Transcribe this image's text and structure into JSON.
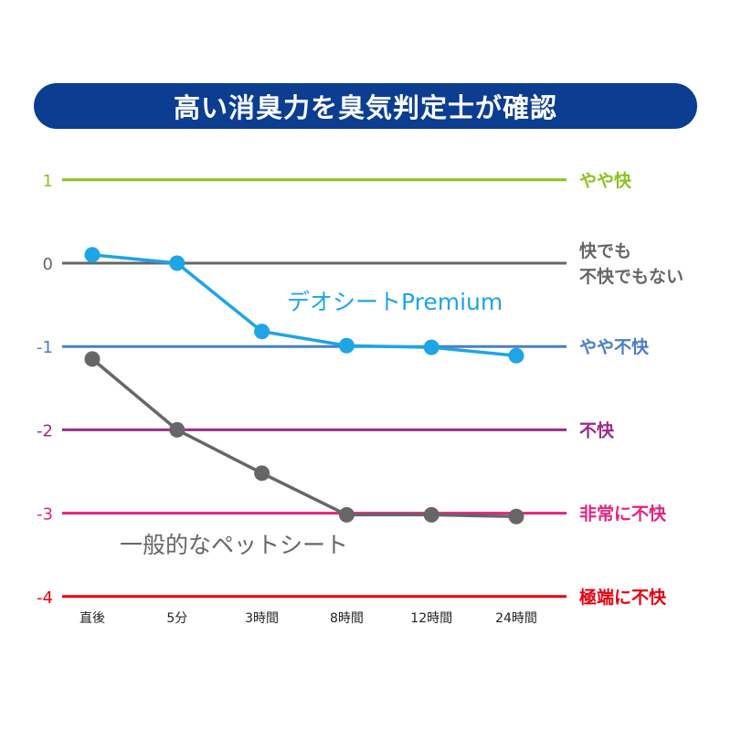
{
  "title": "高い消臭力を臭気判定士が確認",
  "chart_data": {
    "type": "line",
    "categories": [
      "直後",
      "5分",
      "3時間",
      "8時間",
      "12時間",
      "24時間"
    ],
    "ylim": [
      -4,
      1
    ],
    "y_ticks": [
      1,
      0,
      -1,
      -2,
      -3,
      -4
    ],
    "levels": [
      {
        "value": 1,
        "tick_label": "1",
        "label": [
          "やや快"
        ],
        "color": "#8dc21f"
      },
      {
        "value": 0,
        "tick_label": "0",
        "label": [
          "快でも",
          "不快でもない"
        ],
        "color": "#666666"
      },
      {
        "value": -1,
        "tick_label": "-1",
        "label": [
          "やや不快"
        ],
        "color": "#4a7fc1"
      },
      {
        "value": -2,
        "tick_label": "-2",
        "label": [
          "不快"
        ],
        "color": "#9b2a8a"
      },
      {
        "value": -3,
        "tick_label": "-3",
        "label": [
          "非常に不快"
        ],
        "color": "#e4237e"
      },
      {
        "value": -4,
        "tick_label": "-4",
        "label": [
          "極端に不快"
        ],
        "color": "#e60012"
      }
    ],
    "series": [
      {
        "name": "デオシートPremium",
        "values": [
          0.1,
          0.0,
          -0.82,
          -0.99,
          -1.01,
          -1.11
        ],
        "color": "#1fa4e6"
      },
      {
        "name": "一般的なペットシート",
        "values": [
          -1.15,
          -2.0,
          -2.52,
          -3.02,
          -3.02,
          -3.04
        ],
        "color": "#666666"
      }
    ]
  }
}
